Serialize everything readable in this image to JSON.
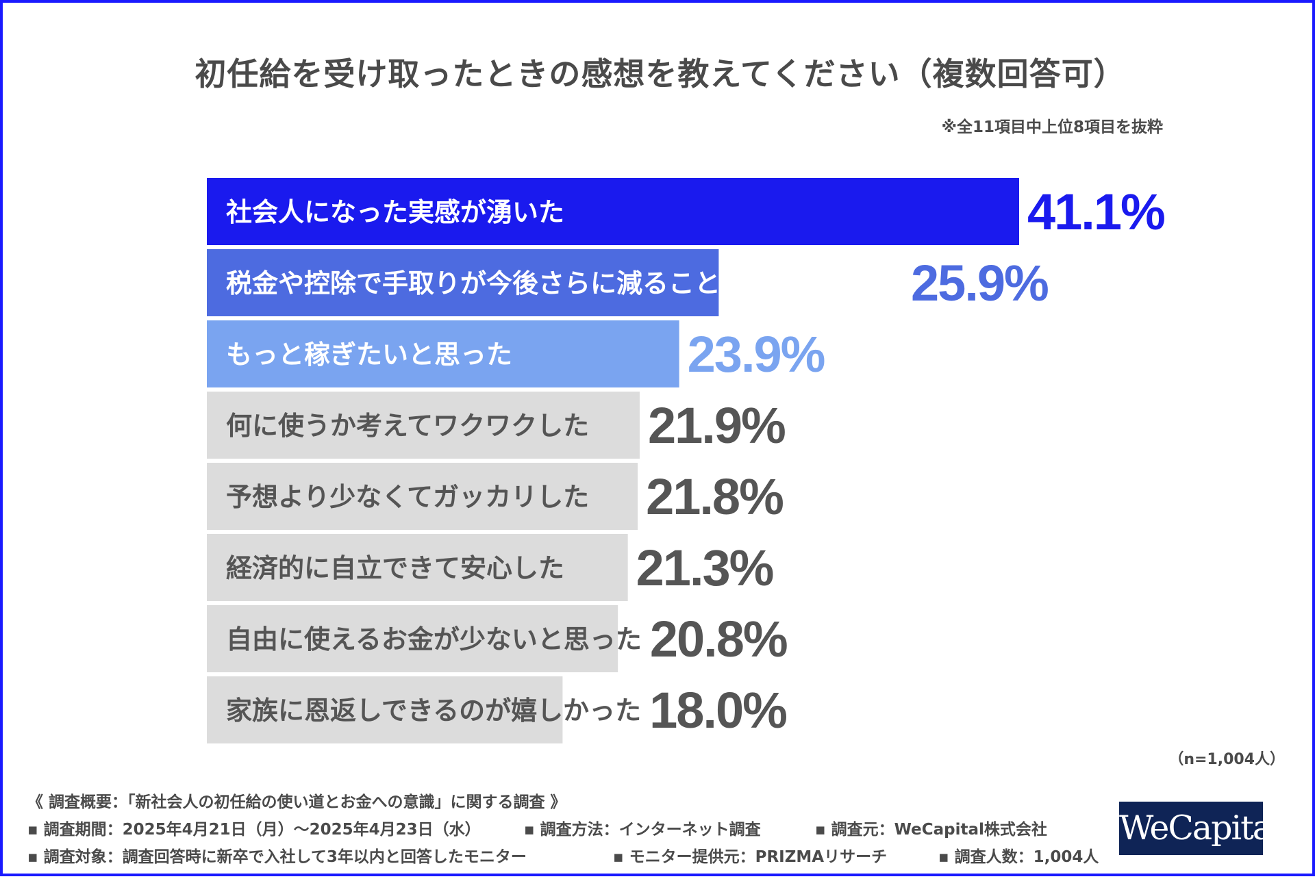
{
  "title": "初任給を受け取ったときの感想を教えてください（複数回答可）",
  "note": "※全11項目中上位8項目を抜粋",
  "sample_size": "（n=1,004人）",
  "survey": {
    "heading": "《 調査概要：「新社会人の初任給の使い道とお金への意識」に関する調査 》",
    "period": "▪ 調査期間：2025年4月21日（月）〜2025年4月23日（水）",
    "method": "▪ 調査方法：インターネット調査",
    "source": "▪ 調査元：WeCapital株式会社",
    "target": "▪ 調査対象：調査回答時に新卒で入社して3年以内と回答したモニター",
    "provider": "▪ モニター提供元：PRIZMAリサーチ",
    "count": "▪ 調査人数：1,004人"
  },
  "logo": {
    "text": "WeCapital",
    "color": "#0f2456"
  },
  "chart_data": {
    "type": "bar",
    "orientation": "horizontal",
    "title": "初任給を受け取ったときの感想を教えてください（複数回答可）",
    "categories": [
      "社会人になった実感が湧いた",
      "税金や控除で手取りが今後さらに減ることに不安になった",
      "もっと稼ぎたいと思った",
      "何に使うか考えてワクワクした",
      "予想より少なくてガッカリした",
      "経済的に自立できて安心した",
      "自由に使えるお金が少ないと思った",
      "家族に恩返しできるのが嬉しかった"
    ],
    "values": [
      41.1,
      25.9,
      23.9,
      21.9,
      21.8,
      21.3,
      20.8,
      18.0
    ],
    "value_labels": [
      "41.1%",
      "25.9%",
      "23.9%",
      "21.9%",
      "21.8%",
      "21.3%",
      "20.8%",
      "18.0%"
    ],
    "bar_colors": [
      "#1a1aee",
      "#4d6be0",
      "#7aa4f0",
      "#dcdcdc",
      "#dcdcdc",
      "#dcdcdc",
      "#dcdcdc",
      "#dcdcdc"
    ],
    "label_colors": [
      "#ffffff",
      "#ffffff",
      "#ffffff",
      "#555555",
      "#555555",
      "#555555",
      "#555555",
      "#555555"
    ],
    "value_colors": [
      "#1a1aee",
      "#4d6be0",
      "#7aa4f0",
      "#555555",
      "#555555",
      "#555555",
      "#555555",
      "#555555"
    ],
    "unit": "%",
    "xlim": [
      0,
      41.1
    ],
    "grid": false,
    "legend": "none"
  }
}
